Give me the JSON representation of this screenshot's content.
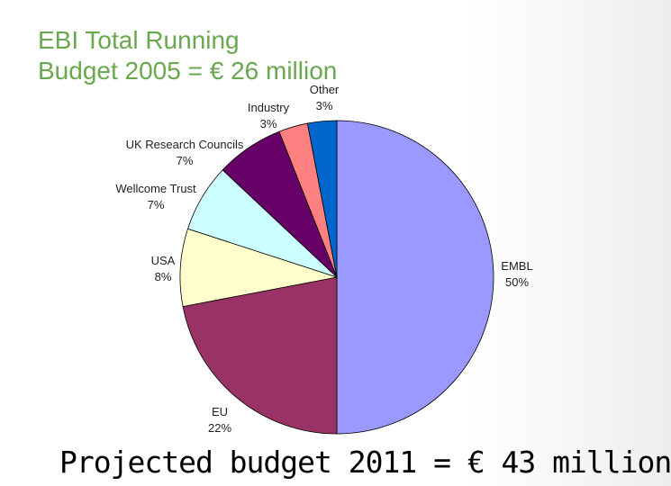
{
  "slide": {
    "title_line1": "EBI Total Running",
    "title_line2": "Budget 2005 = € 26 million",
    "footer": "Projected budget 2011 = € 43 million"
  },
  "chart_data": {
    "type": "pie",
    "title": "",
    "slices": [
      {
        "name": "EMBL",
        "label": "50%",
        "value": 50,
        "color": "#9999ff"
      },
      {
        "name": "EU",
        "label": "22%",
        "value": 22,
        "color": "#993366"
      },
      {
        "name": "USA",
        "label": "8%",
        "value": 8,
        "color": "#ffffcc"
      },
      {
        "name": "Wellcome Trust",
        "label": "7%",
        "value": 7,
        "color": "#ccffff"
      },
      {
        "name": "UK Research Councils",
        "label": "7%",
        "value": 7,
        "color": "#660066"
      },
      {
        "name": "Industry",
        "label": "3%",
        "value": 3,
        "color": "#ff8080"
      },
      {
        "name": "Other",
        "label": "3%",
        "value": 3,
        "color": "#0066cc"
      }
    ],
    "start_angle_deg": 0,
    "direction": "clockwise",
    "legend": "none"
  }
}
